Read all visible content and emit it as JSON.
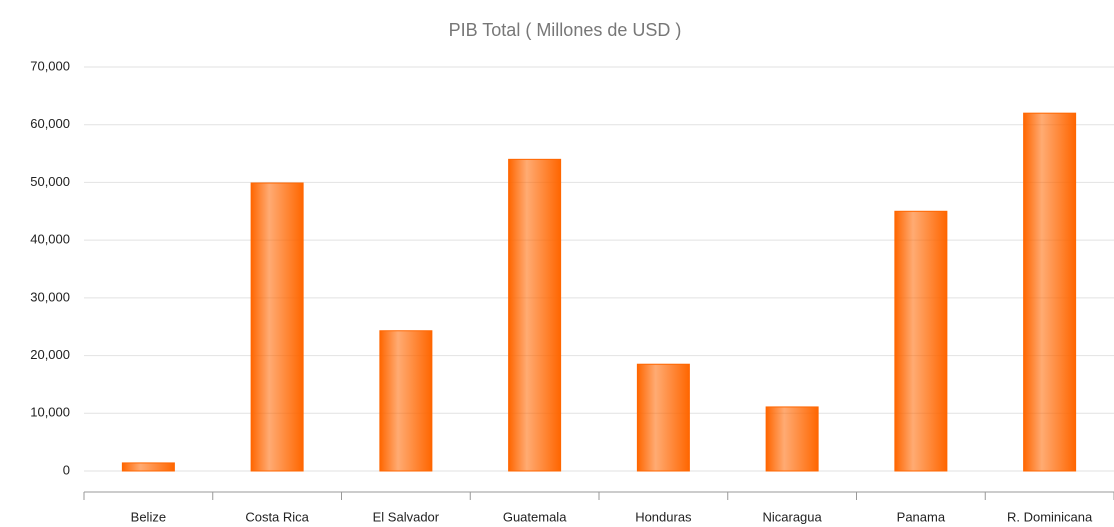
{
  "chart_data": {
    "type": "bar",
    "title": "PIB Total ( Millones de USD )",
    "categories": [
      "Belize",
      "Costa Rica",
      "El Salvador",
      "Guatemala",
      "Honduras",
      "Nicaragua",
      "Panama",
      "R. Dominicana"
    ],
    "values": [
      1400,
      49900,
      24300,
      54000,
      18500,
      11100,
      45000,
      62000
    ],
    "color": "#ff6600",
    "ylim": [
      0,
      70000
    ],
    "yticks": [
      0,
      {
        "value": 10000,
        "label": "10,000"
      },
      {
        "value": 20000,
        "label": "20,000"
      },
      {
        "value": 30000,
        "label": "30,000"
      },
      {
        "value": 40000,
        "label": "40,000"
      },
      {
        "value": 50000,
        "label": "50,000"
      },
      {
        "value": 60000,
        "label": "60,000"
      },
      {
        "value": 70000,
        "label": "70,000"
      }
    ],
    "grid": true
  }
}
